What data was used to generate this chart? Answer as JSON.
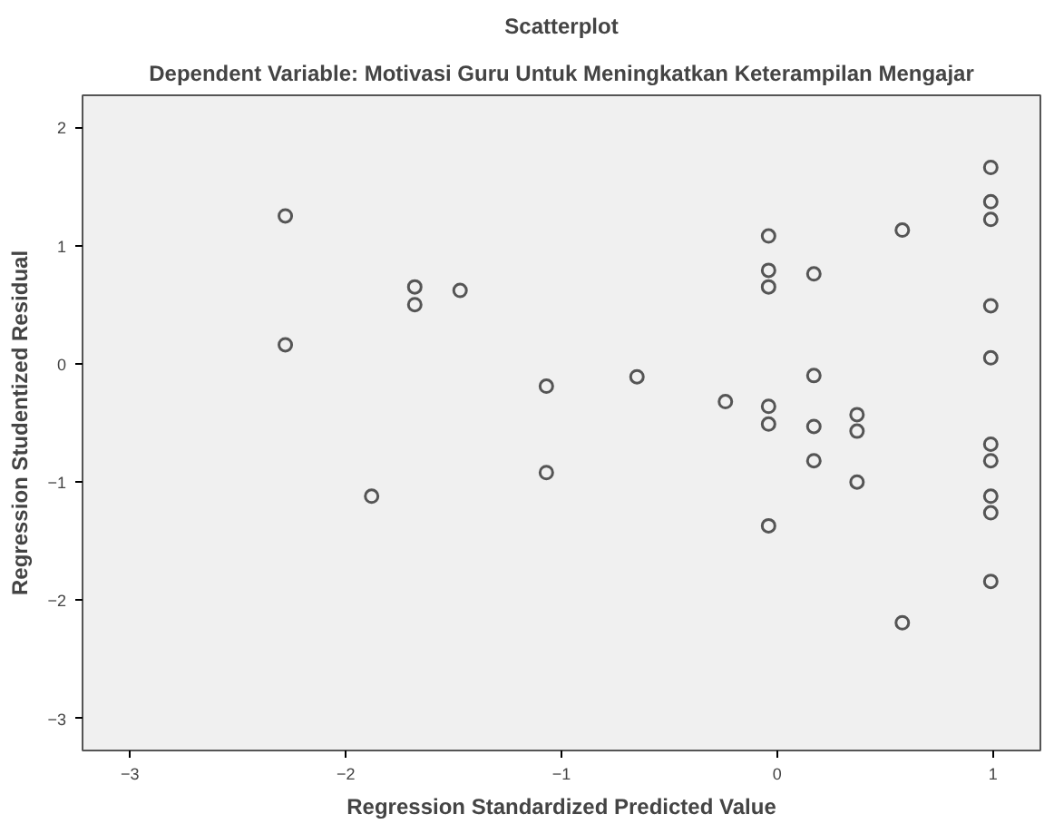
{
  "chart_data": {
    "type": "scatter",
    "title": "Scatterplot",
    "subtitle": "Dependent Variable: Motivasi Guru Untuk Meningkatkan Keterampilan Mengajar",
    "xlabel": "Regression Standardized Predicted Value",
    "ylabel": "Regression Studentized Residual",
    "x": [
      -2.28,
      -2.28,
      -1.68,
      -1.68,
      -1.47,
      -1.88,
      -1.07,
      -1.07,
      -0.65,
      -0.24,
      -0.04,
      -0.04,
      -0.04,
      -0.04,
      -0.04,
      -0.04,
      0.17,
      0.17,
      0.17,
      0.17,
      0.37,
      0.37,
      0.37,
      0.58,
      0.58,
      0.99,
      0.99,
      0.99,
      0.99,
      0.99,
      0.99,
      0.99,
      0.99,
      0.99,
      0.99
    ],
    "series": [
      {
        "color": "#555555",
        "values": [
          1.25,
          0.16,
          0.65,
          0.5,
          0.62,
          -1.12,
          -0.19,
          -0.92,
          -0.11,
          -0.32,
          1.08,
          0.79,
          0.65,
          -0.36,
          -0.51,
          -1.37,
          0.76,
          -0.1,
          -0.53,
          -0.82,
          -0.43,
          -0.57,
          -1.0,
          1.13,
          -2.19,
          1.66,
          1.37,
          1.22,
          0.49,
          0.05,
          -0.68,
          -0.82,
          -1.12,
          -1.26,
          -1.84
        ]
      }
    ],
    "xlim": [
      -3.22,
      1.22
    ],
    "ylim": [
      -3.27,
      2.27
    ],
    "xticks": [
      -3,
      -2,
      -1,
      0,
      1
    ],
    "yticks": [
      -3,
      -2,
      -1,
      0,
      1,
      2
    ],
    "marker": "circle",
    "grid": false
  }
}
